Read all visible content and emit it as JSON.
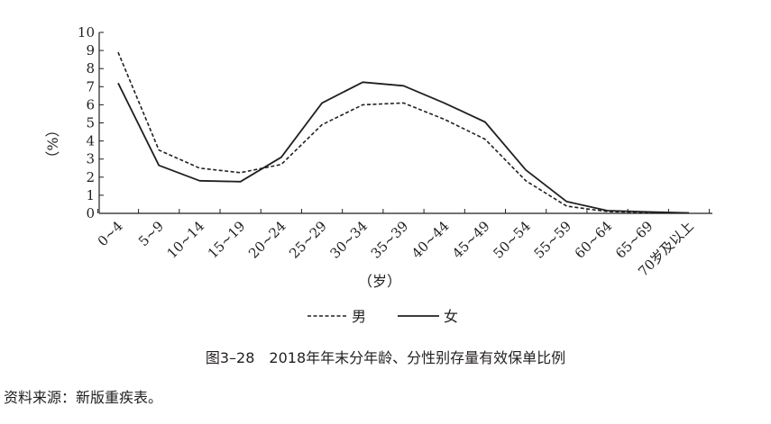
{
  "chart_data": {
    "type": "line",
    "categories": [
      "0~4",
      "5~9",
      "10~14",
      "15~19",
      "20~24",
      "25~29",
      "30~34",
      "35~39",
      "40~44",
      "45~49",
      "50~54",
      "55~59",
      "60~64",
      "65~69",
      "70岁及以上"
    ],
    "series": [
      {
        "name": "男",
        "style": "dashed",
        "color": "#231f20",
        "values": [
          8.9,
          3.5,
          2.5,
          2.25,
          2.7,
          4.9,
          6.0,
          6.1,
          5.2,
          4.1,
          1.8,
          0.4,
          0.1,
          0.05,
          0.02
        ]
      },
      {
        "name": "女",
        "style": "solid",
        "color": "#231f20",
        "values": [
          7.2,
          2.65,
          1.8,
          1.75,
          3.1,
          6.1,
          7.25,
          7.05,
          6.1,
          5.05,
          2.4,
          0.65,
          0.15,
          0.08,
          0.02
        ]
      }
    ],
    "yticks": [
      0,
      1,
      2,
      3,
      4,
      5,
      6,
      7,
      8,
      9,
      10
    ],
    "ylim": [
      0,
      10
    ],
    "ylabel": "（%）",
    "xlabel": "（岁）",
    "legend_position": "bottom-center",
    "grid": false
  },
  "caption": "图3–28　2018年年末分年龄、分性别存量有效保单比例",
  "source": "资料来源：新版重疾表。"
}
